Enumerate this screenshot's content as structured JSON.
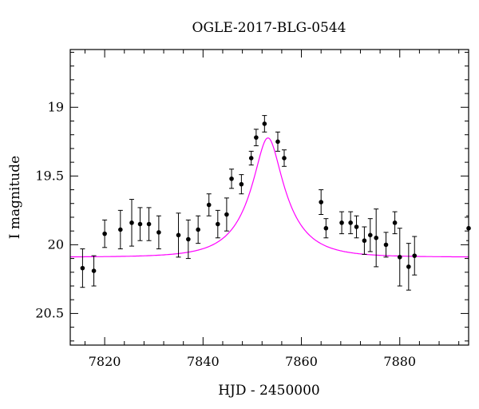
{
  "chart_data": {
    "type": "scatter",
    "title": "OGLE-2017-BLG-0544",
    "xlabel": "HJD - 2450000",
    "ylabel": "I magnitude",
    "xlim": [
      7813,
      7894
    ],
    "ylim": [
      20.73,
      18.58
    ],
    "y_inverted": true,
    "x_ticks_major": [
      7820,
      7840,
      7860,
      7880
    ],
    "x_tick_labels": [
      "7820",
      "7840",
      "7860",
      "7880"
    ],
    "y_ticks_major": [
      19.0,
      19.5,
      20.0,
      20.5
    ],
    "y_tick_labels": [
      "19",
      "19.5",
      "20",
      "20.5"
    ],
    "grid": false,
    "legend": "none",
    "colors": {
      "points": "#000000",
      "model": "#ff00ff"
    },
    "model_curve": {
      "type": "paczynski",
      "t0": 7853.2,
      "u0": 0.3,
      "tE": 8.5,
      "baseline_mag": 20.09,
      "blend_fraction": 0.5
    },
    "series": [
      {
        "points": [
          {
            "x": 7815.5,
            "y": 20.17,
            "err": 0.14
          },
          {
            "x": 7817.8,
            "y": 20.19,
            "err": 0.11
          },
          {
            "x": 7820.0,
            "y": 19.92,
            "err": 0.1
          },
          {
            "x": 7823.2,
            "y": 19.89,
            "err": 0.14
          },
          {
            "x": 7825.5,
            "y": 19.84,
            "err": 0.17
          },
          {
            "x": 7827.2,
            "y": 19.85,
            "err": 0.12
          },
          {
            "x": 7829.0,
            "y": 19.85,
            "err": 0.12
          },
          {
            "x": 7831.0,
            "y": 19.91,
            "err": 0.12
          },
          {
            "x": 7835.0,
            "y": 19.93,
            "err": 0.16
          },
          {
            "x": 7837.0,
            "y": 19.96,
            "err": 0.14
          },
          {
            "x": 7839.0,
            "y": 19.89,
            "err": 0.1
          },
          {
            "x": 7841.2,
            "y": 19.71,
            "err": 0.08
          },
          {
            "x": 7843.0,
            "y": 19.85,
            "err": 0.1
          },
          {
            "x": 7844.8,
            "y": 19.78,
            "err": 0.12
          },
          {
            "x": 7845.8,
            "y": 19.52,
            "err": 0.07
          },
          {
            "x": 7847.8,
            "y": 19.56,
            "err": 0.07
          },
          {
            "x": 7849.8,
            "y": 19.37,
            "err": 0.05
          },
          {
            "x": 7850.8,
            "y": 19.22,
            "err": 0.06
          },
          {
            "x": 7852.5,
            "y": 19.12,
            "err": 0.06
          },
          {
            "x": 7855.2,
            "y": 19.25,
            "err": 0.07
          },
          {
            "x": 7856.5,
            "y": 19.37,
            "err": 0.06
          },
          {
            "x": 7864.0,
            "y": 19.69,
            "err": 0.09
          },
          {
            "x": 7865.0,
            "y": 19.88,
            "err": 0.07
          },
          {
            "x": 7868.2,
            "y": 19.84,
            "err": 0.08
          },
          {
            "x": 7870.0,
            "y": 19.84,
            "err": 0.08
          },
          {
            "x": 7871.2,
            "y": 19.87,
            "err": 0.08
          },
          {
            "x": 7872.8,
            "y": 19.97,
            "err": 0.1
          },
          {
            "x": 7874.0,
            "y": 19.93,
            "err": 0.12
          },
          {
            "x": 7875.2,
            "y": 19.95,
            "err": 0.21
          },
          {
            "x": 7877.2,
            "y": 20.0,
            "err": 0.09
          },
          {
            "x": 7879.0,
            "y": 19.84,
            "err": 0.08
          },
          {
            "x": 7880.0,
            "y": 20.09,
            "err": 0.21
          },
          {
            "x": 7881.8,
            "y": 20.16,
            "err": 0.17
          },
          {
            "x": 7883.0,
            "y": 20.08,
            "err": 0.14
          },
          {
            "x": 7894.0,
            "y": 19.88,
            "err": 0.09
          }
        ]
      }
    ]
  }
}
